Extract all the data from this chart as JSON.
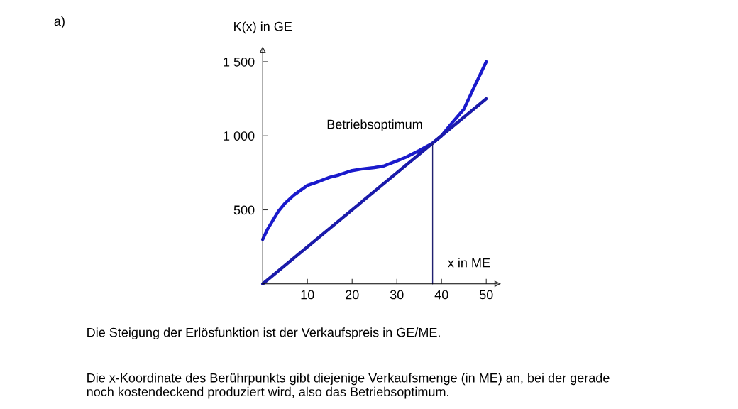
{
  "chart_data": {
    "type": "line",
    "xlabel": "x in ME",
    "ylabel": "K(x) in GE",
    "series": [
      {
        "color": "#1a1acc",
        "x": [
          0,
          1,
          2,
          3.5,
          5,
          7,
          10,
          12,
          15,
          17,
          20,
          22,
          25,
          27,
          30,
          32,
          35,
          38,
          40,
          42,
          45,
          47,
          50
        ],
        "values": [
          300,
          365,
          415,
          490,
          545,
          600,
          665,
          685,
          720,
          735,
          765,
          775,
          785,
          795,
          830,
          855,
          900,
          950,
          1000,
          1075,
          1180,
          1310,
          1500
        ]
      },
      {
        "color": "#1a1aaa",
        "x": [
          0,
          50
        ],
        "values": [
          0,
          1250
        ]
      },
      {
        "color": "#202070",
        "x": [
          38,
          38
        ],
        "values": [
          0,
          950
        ]
      }
    ],
    "xlim": [
      0,
      52.5
    ],
    "ylim": [
      0,
      1580
    ],
    "xticks": [
      10,
      20,
      30,
      40,
      50
    ],
    "yticks": [
      {
        "value": 500,
        "label": "500"
      },
      {
        "value": 1000,
        "label": "1 000"
      },
      {
        "value": 1500,
        "label": "1 500"
      }
    ],
    "grid": false,
    "annotations": [
      {
        "text": "Betriebsoptimum",
        "x": 38,
        "y": 950
      },
      "a)",
      "Die Steigung der Erlösfunktion ist der Verkaufspreis in GE/ME.",
      "Die x-Koordinate des Berührpunkts gibt diejenige Verkaufsmenge (in ME) an, bei der gerade\nnoch kostendeckend produziert wird, also das Betriebsoptimum."
    ]
  }
}
